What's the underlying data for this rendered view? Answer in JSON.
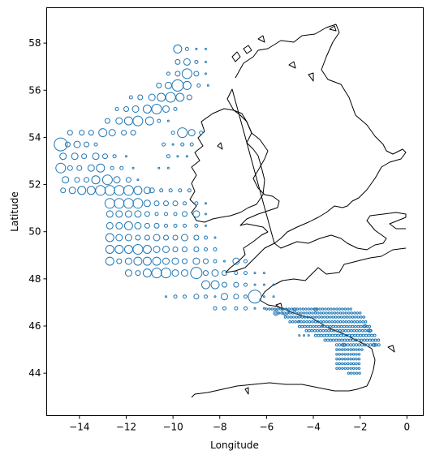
{
  "chart_data": {
    "type": "scatter",
    "title": "",
    "xlabel": "Longitude",
    "ylabel": "Latitude",
    "xlim": [
      -15.4,
      0.7
    ],
    "ylim": [
      42.2,
      59.5
    ],
    "xticks": [
      -14,
      -12,
      -10,
      -8,
      -6,
      -4,
      -2,
      0
    ],
    "yticks": [
      44,
      46,
      48,
      50,
      52,
      54,
      56,
      58
    ],
    "xtick_labels": [
      "−14",
      "−12",
      "−10",
      "−8",
      "−6",
      "−4",
      "−2",
      "0"
    ],
    "ytick_labels": [
      "44",
      "46",
      "48",
      "50",
      "52",
      "54",
      "56",
      "58"
    ],
    "grid": false,
    "legend": null,
    "marker": "open-circle",
    "marker_color": "#1f77b4",
    "coastline_color": "#000000",
    "points": [
      [
        -14.8,
        53.7,
        8
      ],
      [
        -14.5,
        53.7,
        3
      ],
      [
        -14.1,
        53.7,
        4
      ],
      [
        -13.7,
        53.7,
        3
      ],
      [
        -13.3,
        53.7,
        2
      ],
      [
        -14.7,
        53.2,
        4
      ],
      [
        -14.2,
        53.2,
        4
      ],
      [
        -13.8,
        53.2,
        3
      ],
      [
        -13.3,
        53.2,
        4
      ],
      [
        -12.9,
        53.2,
        3
      ],
      [
        -12.5,
        53.2,
        2
      ],
      [
        -12.0,
        53.2,
        1
      ],
      [
        -14.8,
        52.7,
        6
      ],
      [
        -14.4,
        52.7,
        3
      ],
      [
        -14.0,
        52.7,
        3
      ],
      [
        -13.5,
        52.7,
        4
      ],
      [
        -13.1,
        52.7,
        5
      ],
      [
        -12.6,
        52.7,
        2
      ],
      [
        -12.2,
        52.7,
        2
      ],
      [
        -11.7,
        52.7,
        1
      ],
      [
        -14.6,
        52.2,
        4
      ],
      [
        -14.1,
        52.2,
        3
      ],
      [
        -13.7,
        52.2,
        3
      ],
      [
        -13.3,
        52.2,
        5
      ],
      [
        -12.8,
        52.2,
        6
      ],
      [
        -12.4,
        52.2,
        4
      ],
      [
        -11.9,
        52.2,
        3
      ],
      [
        -11.5,
        52.2,
        1
      ],
      [
        -14.7,
        51.75,
        3
      ],
      [
        -14.3,
        51.75,
        4
      ],
      [
        -13.9,
        51.75,
        5
      ],
      [
        -13.5,
        51.75,
        5
      ],
      [
        -13.1,
        51.75,
        6
      ],
      [
        -12.7,
        51.75,
        6
      ],
      [
        -12.3,
        51.75,
        6
      ],
      [
        -11.9,
        51.75,
        6
      ],
      [
        -11.5,
        51.75,
        5
      ],
      [
        -11.1,
        51.75,
        4
      ],
      [
        -14.4,
        54.2,
        3
      ],
      [
        -13.9,
        54.2,
        3
      ],
      [
        -13.5,
        54.2,
        3
      ],
      [
        -13.0,
        54.2,
        5
      ],
      [
        -12.6,
        54.2,
        4
      ],
      [
        -12.1,
        54.2,
        3
      ],
      [
        -11.7,
        54.2,
        3
      ],
      [
        -12.8,
        54.7,
        3
      ],
      [
        -12.3,
        54.7,
        4
      ],
      [
        -11.9,
        54.7,
        5
      ],
      [
        -11.5,
        54.7,
        6
      ],
      [
        -11.0,
        54.7,
        5
      ],
      [
        -10.6,
        54.7,
        2
      ],
      [
        -10.2,
        54.7,
        1
      ],
      [
        -12.4,
        55.2,
        2
      ],
      [
        -12.0,
        55.2,
        3
      ],
      [
        -11.6,
        55.2,
        4
      ],
      [
        -11.1,
        55.2,
        5
      ],
      [
        -10.7,
        55.2,
        6
      ],
      [
        -10.3,
        55.2,
        4
      ],
      [
        -9.9,
        55.2,
        2
      ],
      [
        -11.8,
        55.7,
        2
      ],
      [
        -11.4,
        55.7,
        3
      ],
      [
        -10.9,
        55.7,
        4
      ],
      [
        -10.5,
        55.7,
        5
      ],
      [
        -10.1,
        55.7,
        6
      ],
      [
        -9.7,
        55.7,
        5
      ],
      [
        -9.3,
        55.7,
        3
      ],
      [
        -10.6,
        56.2,
        3
      ],
      [
        -10.2,
        56.2,
        4
      ],
      [
        -9.8,
        56.2,
        7
      ],
      [
        -9.4,
        56.2,
        5
      ],
      [
        -8.9,
        56.2,
        2
      ],
      [
        -8.5,
        56.2,
        1
      ],
      [
        -10.2,
        56.7,
        2
      ],
      [
        -9.8,
        56.7,
        3
      ],
      [
        -9.4,
        56.7,
        6
      ],
      [
        -9.0,
        56.7,
        3
      ],
      [
        -8.6,
        56.7,
        1
      ],
      [
        -9.8,
        57.2,
        3
      ],
      [
        -9.4,
        57.2,
        4
      ],
      [
        -9.0,
        57.2,
        2
      ],
      [
        -8.6,
        57.2,
        1
      ],
      [
        -9.8,
        57.75,
        5
      ],
      [
        -9.4,
        57.75,
        2
      ],
      [
        -9.0,
        57.75,
        1
      ],
      [
        -8.6,
        57.75,
        1
      ],
      [
        -10.0,
        54.2,
        2
      ],
      [
        -9.6,
        54.2,
        6
      ],
      [
        -9.2,
        54.2,
        4
      ],
      [
        -8.8,
        54.2,
        2
      ],
      [
        -10.4,
        53.7,
        2
      ],
      [
        -10.0,
        53.7,
        1
      ],
      [
        -9.6,
        53.7,
        2
      ],
      [
        -9.2,
        53.7,
        2
      ],
      [
        -10.2,
        53.2,
        2
      ],
      [
        -9.8,
        53.2,
        1
      ],
      [
        -9.4,
        53.2,
        1
      ],
      [
        -10.6,
        52.7,
        1
      ],
      [
        -10.2,
        52.7,
        1
      ],
      [
        -10.9,
        51.75,
        3
      ],
      [
        -10.5,
        51.75,
        2
      ],
      [
        -10.1,
        51.75,
        2
      ],
      [
        -9.7,
        51.75,
        2
      ],
      [
        -9.3,
        51.75,
        2
      ],
      [
        -12.7,
        51.2,
        6
      ],
      [
        -12.3,
        51.2,
        6
      ],
      [
        -11.9,
        51.2,
        6
      ],
      [
        -11.5,
        51.2,
        6
      ],
      [
        -11.1,
        51.2,
        4
      ],
      [
        -10.7,
        51.2,
        3
      ],
      [
        -10.3,
        51.2,
        3
      ],
      [
        -9.9,
        51.2,
        3
      ],
      [
        -9.5,
        51.2,
        2
      ],
      [
        -9.0,
        51.2,
        2
      ],
      [
        -8.6,
        51.2,
        1
      ],
      [
        -12.7,
        50.75,
        4
      ],
      [
        -12.3,
        50.75,
        4
      ],
      [
        -11.9,
        50.75,
        4
      ],
      [
        -11.5,
        50.75,
        4
      ],
      [
        -11.1,
        50.75,
        3
      ],
      [
        -10.7,
        50.75,
        2
      ],
      [
        -10.3,
        50.75,
        2
      ],
      [
        -9.9,
        50.75,
        2
      ],
      [
        -9.5,
        50.75,
        3
      ],
      [
        -9.0,
        50.75,
        4
      ],
      [
        -8.6,
        50.75,
        1
      ],
      [
        -12.7,
        50.25,
        4
      ],
      [
        -12.3,
        50.25,
        4
      ],
      [
        -11.9,
        50.25,
        5
      ],
      [
        -11.5,
        50.25,
        4
      ],
      [
        -11.1,
        50.25,
        3
      ],
      [
        -10.7,
        50.25,
        3
      ],
      [
        -10.3,
        50.25,
        2
      ],
      [
        -9.9,
        50.25,
        2
      ],
      [
        -9.5,
        50.25,
        2
      ],
      [
        -9.0,
        50.25,
        2
      ],
      [
        -8.6,
        50.25,
        1
      ],
      [
        -12.7,
        49.75,
        5
      ],
      [
        -12.3,
        49.75,
        4
      ],
      [
        -11.9,
        49.75,
        4
      ],
      [
        -11.5,
        49.75,
        3
      ],
      [
        -11.1,
        49.75,
        3
      ],
      [
        -10.7,
        49.75,
        4
      ],
      [
        -10.3,
        49.75,
        3
      ],
      [
        -9.9,
        49.75,
        3
      ],
      [
        -9.5,
        49.75,
        4
      ],
      [
        -9.0,
        49.75,
        3
      ],
      [
        -8.6,
        49.75,
        2
      ],
      [
        -8.2,
        49.75,
        1
      ],
      [
        -12.7,
        49.25,
        5
      ],
      [
        -12.3,
        49.25,
        5
      ],
      [
        -11.9,
        49.25,
        5
      ],
      [
        -11.5,
        49.25,
        6
      ],
      [
        -11.1,
        49.25,
        5
      ],
      [
        -10.7,
        49.25,
        4
      ],
      [
        -10.3,
        49.25,
        4
      ],
      [
        -9.9,
        49.25,
        3
      ],
      [
        -9.5,
        49.25,
        3
      ],
      [
        -9.0,
        49.25,
        3
      ],
      [
        -8.6,
        49.25,
        2
      ],
      [
        -8.2,
        49.25,
        2
      ],
      [
        -12.7,
        48.75,
        5
      ],
      [
        -12.3,
        48.75,
        3
      ],
      [
        -11.9,
        48.75,
        4
      ],
      [
        -11.5,
        48.75,
        5
      ],
      [
        -11.1,
        48.75,
        5
      ],
      [
        -10.7,
        48.75,
        5
      ],
      [
        -10.3,
        48.75,
        4
      ],
      [
        -9.9,
        48.75,
        4
      ],
      [
        -9.5,
        48.75,
        3
      ],
      [
        -9.0,
        48.75,
        4
      ],
      [
        -8.6,
        48.75,
        3
      ],
      [
        -8.2,
        48.75,
        2
      ],
      [
        -7.8,
        48.75,
        1
      ],
      [
        -7.3,
        48.75,
        4
      ],
      [
        -6.9,
        48.75,
        2
      ],
      [
        -11.9,
        48.25,
        4
      ],
      [
        -11.5,
        48.25,
        3
      ],
      [
        -11.1,
        48.25,
        5
      ],
      [
        -10.7,
        48.25,
        6
      ],
      [
        -10.3,
        48.25,
        6
      ],
      [
        -9.9,
        48.25,
        4
      ],
      [
        -9.5,
        48.25,
        4
      ],
      [
        -9.0,
        48.25,
        7
      ],
      [
        -8.6,
        48.25,
        3
      ],
      [
        -8.2,
        48.25,
        4
      ],
      [
        -7.8,
        48.25,
        3
      ],
      [
        -7.3,
        48.25,
        2
      ],
      [
        -6.9,
        48.25,
        2
      ],
      [
        -6.5,
        48.25,
        1
      ],
      [
        -6.1,
        48.25,
        1
      ],
      [
        -8.6,
        47.75,
        5
      ],
      [
        -8.2,
        47.75,
        5
      ],
      [
        -7.8,
        47.75,
        3
      ],
      [
        -7.3,
        47.75,
        3
      ],
      [
        -6.9,
        47.75,
        2
      ],
      [
        -6.5,
        47.75,
        1
      ],
      [
        -6.1,
        47.75,
        1
      ],
      [
        -5.7,
        47.75,
        1
      ],
      [
        -10.3,
        47.25,
        1
      ],
      [
        -9.9,
        47.25,
        2
      ],
      [
        -9.5,
        47.25,
        2
      ],
      [
        -9.0,
        47.25,
        3
      ],
      [
        -8.6,
        47.25,
        2
      ],
      [
        -8.2,
        47.25,
        1
      ],
      [
        -7.8,
        47.25,
        4
      ],
      [
        -7.3,
        47.25,
        3
      ],
      [
        -6.9,
        47.25,
        2
      ],
      [
        -6.5,
        47.25,
        8
      ],
      [
        -6.1,
        47.25,
        1
      ],
      [
        -5.7,
        47.25,
        1
      ],
      [
        -8.2,
        46.75,
        2
      ],
      [
        -7.8,
        46.75,
        2
      ],
      [
        -7.3,
        46.75,
        2
      ],
      [
        -6.9,
        46.75,
        2
      ],
      [
        -6.5,
        46.75,
        1
      ],
      [
        -6.1,
        46.75,
        1
      ]
    ],
    "dense_rows": [
      {
        "lat": 46.72,
        "lon_from": -6.0,
        "lon_to": -2.3,
        "step": 0.12,
        "size": 1.2
      },
      {
        "lat": 46.55,
        "lon_from": -5.6,
        "lon_to": -2.0,
        "step": 0.12,
        "size": 1.2
      },
      {
        "lat": 46.38,
        "lon_from": -5.2,
        "lon_to": -1.8,
        "step": 0.12,
        "size": 1.3
      },
      {
        "lat": 46.18,
        "lon_from": -5.0,
        "lon_to": -1.7,
        "step": 0.12,
        "size": 1.3
      },
      {
        "lat": 45.98,
        "lon_from": -4.6,
        "lon_to": -1.6,
        "step": 0.12,
        "size": 1.4
      },
      {
        "lat": 45.8,
        "lon_from": -4.3,
        "lon_to": -1.5,
        "step": 0.12,
        "size": 1.4
      },
      {
        "lat": 45.6,
        "lon_from": -3.9,
        "lon_to": -1.3,
        "step": 0.12,
        "size": 1.5
      },
      {
        "lat": 45.4,
        "lon_from": -3.5,
        "lon_to": -1.2,
        "step": 0.12,
        "size": 1.5
      },
      {
        "lat": 45.2,
        "lon_from": -3.0,
        "lon_to": -1.1,
        "step": 0.12,
        "size": 1.6
      },
      {
        "lat": 45.0,
        "lon_from": -3.0,
        "lon_to": -1.9,
        "step": 0.12,
        "size": 1.2
      },
      {
        "lat": 44.8,
        "lon_from": -3.0,
        "lon_to": -2.0,
        "step": 0.12,
        "size": 1.2
      },
      {
        "lat": 44.6,
        "lon_from": -3.0,
        "lon_to": -2.0,
        "step": 0.12,
        "size": 1.2
      },
      {
        "lat": 44.4,
        "lon_from": -3.0,
        "lon_to": -2.0,
        "step": 0.12,
        "size": 1.2
      },
      {
        "lat": 44.2,
        "lon_from": -3.0,
        "lon_to": -2.0,
        "step": 0.12,
        "size": 1.2
      },
      {
        "lat": 44.0,
        "lon_from": -2.5,
        "lon_to": -2.0,
        "step": 0.12,
        "size": 1.2
      }
    ],
    "extra_points": [
      [
        -4.6,
        45.6,
        1
      ],
      [
        -4.4,
        45.6,
        1
      ],
      [
        -4.2,
        45.6,
        1
      ],
      [
        -4.6,
        46.2,
        1
      ],
      [
        -4.4,
        46.4,
        1
      ],
      [
        -3.6,
        46.0,
        1
      ],
      [
        -1.8,
        46.0,
        2
      ],
      [
        -1.6,
        45.8,
        2
      ],
      [
        -1.4,
        45.2,
        2
      ],
      [
        -2.7,
        45.2,
        2
      ],
      [
        -5.2,
        46.6,
        4
      ],
      [
        -4.8,
        46.7,
        2
      ],
      [
        -5.6,
        46.55,
        3
      ],
      [
        -3.9,
        46.7,
        2
      ]
    ]
  }
}
